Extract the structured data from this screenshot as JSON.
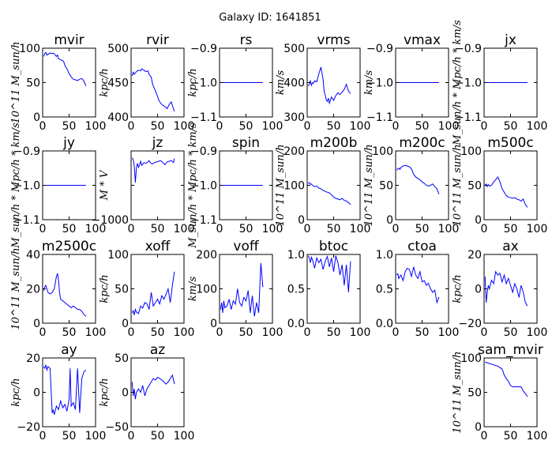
{
  "suptitle": "Galaxy ID: 1641851",
  "colors": {
    "line": "#0000ff",
    "axes": "#000000",
    "background": "#ffffff"
  },
  "chart_data": [
    {
      "type": "line",
      "title": "mvir",
      "ylabel": "10^11 M_sun/h",
      "xlim": [
        0,
        100
      ],
      "ylim": [
        0,
        100
      ],
      "xticks": [
        "0",
        "50",
        "100"
      ],
      "yticks": [
        "0",
        "50",
        "100"
      ],
      "x": [
        2,
        4,
        6,
        8,
        10,
        14,
        18,
        20,
        22,
        26,
        28,
        30,
        34,
        38,
        40,
        42,
        46,
        50,
        52,
        54,
        58,
        62,
        66,
        70,
        74,
        78,
        82
      ],
      "y": [
        88,
        92,
        94,
        90,
        91,
        93,
        92,
        93,
        92,
        88,
        90,
        85,
        83,
        82,
        80,
        75,
        70,
        63,
        61,
        58,
        55,
        54,
        53,
        55,
        56,
        52,
        45
      ]
    },
    {
      "type": "line",
      "title": "rvir",
      "ylabel": "kpc/h",
      "xlim": [
        0,
        100
      ],
      "ylim": [
        400,
        500
      ],
      "xticks": [
        "0",
        "50",
        "100"
      ],
      "yticks": [
        "400",
        "450",
        "500"
      ],
      "x": [
        2,
        4,
        6,
        8,
        10,
        14,
        18,
        20,
        24,
        28,
        32,
        34,
        38,
        40,
        42,
        46,
        50,
        52,
        56,
        60,
        64,
        68,
        72,
        76,
        80,
        82
      ],
      "y": [
        460,
        465,
        462,
        464,
        466,
        468,
        467,
        470,
        468,
        466,
        467,
        462,
        458,
        450,
        445,
        438,
        430,
        425,
        420,
        417,
        415,
        412,
        418,
        422,
        412,
        408
      ]
    },
    {
      "type": "line",
      "title": "rs",
      "ylabel": "kpc/h",
      "xlim": [
        0,
        100
      ],
      "ylim": [
        -1.1,
        -0.9
      ],
      "xticks": [
        "0",
        "50",
        "100"
      ],
      "yticks": [
        "−1.1",
        "−1.0",
        "−0.9"
      ],
      "x": [
        0,
        82
      ],
      "y": [
        -1.0,
        -1.0
      ]
    },
    {
      "type": "line",
      "title": "vrms",
      "ylabel": "km/s",
      "xlim": [
        0,
        100
      ],
      "ylim": [
        300,
        500
      ],
      "xticks": [
        "0",
        "50",
        "100"
      ],
      "yticks": [
        "300",
        "400",
        "500"
      ],
      "x": [
        2,
        4,
        6,
        8,
        10,
        12,
        14,
        18,
        22,
        26,
        30,
        32,
        34,
        36,
        38,
        40,
        42,
        46,
        50,
        54,
        58,
        62,
        66,
        70,
        74,
        78,
        82
      ],
      "y": [
        390,
        395,
        405,
        392,
        400,
        398,
        405,
        402,
        425,
        445,
        410,
        375,
        365,
        350,
        345,
        355,
        340,
        358,
        348,
        362,
        370,
        365,
        372,
        380,
        395,
        375,
        368
      ]
    },
    {
      "type": "line",
      "title": "vmax",
      "ylabel": "km/s",
      "xlim": [
        0,
        100
      ],
      "ylim": [
        -1.1,
        -0.9
      ],
      "xticks": [
        "0",
        "50",
        "100"
      ],
      "yticks": [
        "−1.1",
        "−1.0",
        "−0.9"
      ],
      "x": [
        0,
        82
      ],
      "y": [
        -1.0,
        -1.0
      ]
    },
    {
      "type": "line",
      "title": "jx",
      "ylabel": "M_sun/h * Mpc/h * km/s",
      "xlim": [
        0,
        100
      ],
      "ylim": [
        -1.1,
        -0.9
      ],
      "xticks": [
        "0",
        "50",
        "100"
      ],
      "yticks": [
        "−1.1",
        "−1.0",
        "−0.9"
      ],
      "x": [
        0,
        82
      ],
      "y": [
        -1.0,
        -1.0
      ]
    },
    {
      "type": "line",
      "title": "jy",
      "ylabel": "M_sun/h * Mpc/h * km/s",
      "xlim": [
        0,
        100
      ],
      "ylim": [
        -1.1,
        -0.9
      ],
      "xticks": [
        "0",
        "50",
        "100"
      ],
      "yticks": [
        "−1.1",
        "−1.0",
        "−0.9"
      ],
      "x": [
        0,
        82
      ],
      "y": [
        -1.0,
        -1.0
      ]
    },
    {
      "type": "line",
      "title": "jz",
      "ylabel": "M * V",
      "xlim": [
        0,
        100
      ],
      "ylim": [
        -1000,
        0
      ],
      "xticks": [
        "0",
        "50",
        "100"
      ],
      "yticks": [
        "−1000",
        "",
        ""
      ],
      "x": [
        2,
        4,
        6,
        8,
        10,
        12,
        14,
        16,
        18,
        20,
        24,
        28,
        32,
        34,
        36,
        40,
        44,
        48,
        52,
        56,
        60,
        64,
        68,
        72,
        76,
        80,
        82
      ],
      "y": [
        -100,
        -130,
        -210,
        -460,
        -250,
        -180,
        -240,
        -200,
        -150,
        -210,
        -170,
        -180,
        -160,
        -140,
        -170,
        -190,
        -170,
        -160,
        -150,
        -140,
        -170,
        -200,
        -160,
        -150,
        -140,
        -170,
        -110
      ]
    },
    {
      "type": "line",
      "title": "spin",
      "ylabel": "M_sun/h * Mpc/h * km/s",
      "xlim": [
        0,
        100
      ],
      "ylim": [
        -1.1,
        -0.9
      ],
      "xticks": [
        "0",
        "50",
        "100"
      ],
      "yticks": [
        "−1.1",
        "−1.0",
        "−0.9"
      ],
      "x": [
        0,
        82
      ],
      "y": [
        -1.0,
        -1.0
      ]
    },
    {
      "type": "line",
      "title": "m200b",
      "ylabel": "10^11 M_sun/h",
      "xlim": [
        0,
        100
      ],
      "ylim": [
        0,
        200
      ],
      "xticks": [
        "0",
        "50",
        "100"
      ],
      "yticks": [
        "0",
        "100",
        "200"
      ],
      "x": [
        2,
        4,
        6,
        8,
        10,
        14,
        18,
        22,
        26,
        30,
        34,
        38,
        42,
        46,
        50,
        54,
        58,
        62,
        66,
        70,
        74,
        78,
        82
      ],
      "y": [
        105,
        108,
        103,
        104,
        100,
        96,
        98,
        92,
        90,
        85,
        82,
        80,
        78,
        72,
        66,
        62,
        60,
        58,
        62,
        56,
        54,
        50,
        44
      ]
    },
    {
      "type": "line",
      "title": "m200c",
      "ylabel": "10^11 M_sun/h",
      "xlim": [
        0,
        100
      ],
      "ylim": [
        0,
        100
      ],
      "xticks": [
        "0",
        "50",
        "100"
      ],
      "yticks": [
        "0",
        "50",
        "100"
      ],
      "x": [
        2,
        4,
        6,
        8,
        10,
        14,
        18,
        22,
        26,
        30,
        32,
        34,
        38,
        42,
        46,
        50,
        54,
        58,
        62,
        66,
        70,
        74,
        78,
        82
      ],
      "y": [
        72,
        74,
        75,
        73,
        76,
        78,
        79,
        78,
        77,
        74,
        70,
        66,
        62,
        60,
        58,
        55,
        53,
        50,
        49,
        50,
        52,
        48,
        45,
        37
      ]
    },
    {
      "type": "line",
      "title": "m500c",
      "ylabel": "10^11 M_sun/h",
      "xlim": [
        0,
        100
      ],
      "ylim": [
        0,
        100
      ],
      "xticks": [
        "0",
        "50",
        "100"
      ],
      "yticks": [
        "0",
        "50",
        "100"
      ],
      "x": [
        2,
        4,
        6,
        8,
        10,
        14,
        18,
        22,
        26,
        30,
        34,
        38,
        42,
        46,
        50,
        54,
        58,
        62,
        66,
        70,
        74,
        78,
        82
      ],
      "y": [
        50,
        52,
        48,
        51,
        49,
        50,
        55,
        58,
        62,
        55,
        45,
        40,
        35,
        33,
        32,
        31,
        32,
        30,
        29,
        27,
        30,
        22,
        18
      ]
    },
    {
      "type": "line",
      "title": "m2500c",
      "ylabel": "10^11 M_sun/h",
      "xlim": [
        0,
        100
      ],
      "ylim": [
        0,
        40
      ],
      "xticks": [
        "0",
        "50",
        "100"
      ],
      "yticks": [
        "0",
        "20",
        "40"
      ],
      "x": [
        2,
        4,
        6,
        8,
        10,
        14,
        18,
        22,
        26,
        28,
        30,
        32,
        34,
        38,
        42,
        46,
        50,
        54,
        58,
        62,
        66,
        70,
        74,
        78,
        82
      ],
      "y": [
        19,
        21,
        22,
        20,
        18,
        17,
        18,
        20,
        27,
        29,
        25,
        18,
        14,
        13,
        12,
        11,
        10,
        9,
        10,
        9,
        8,
        8,
        7,
        5,
        4
      ]
    },
    {
      "type": "line",
      "title": "xoff",
      "ylabel": "kpc/h",
      "xlim": [
        0,
        100
      ],
      "ylim": [
        0,
        100
      ],
      "xticks": [
        "0",
        "50",
        "100"
      ],
      "yticks": [
        "0",
        "50",
        "100"
      ],
      "x": [
        2,
        4,
        6,
        8,
        10,
        14,
        18,
        22,
        26,
        30,
        34,
        38,
        42,
        46,
        50,
        54,
        58,
        62,
        66,
        70,
        74,
        78,
        82
      ],
      "y": [
        15,
        18,
        12,
        20,
        16,
        14,
        25,
        22,
        30,
        28,
        20,
        45,
        25,
        30,
        35,
        28,
        40,
        35,
        42,
        50,
        30,
        55,
        75
      ]
    },
    {
      "type": "line",
      "title": "voff",
      "ylabel": "km/s",
      "xlim": [
        0,
        100
      ],
      "ylim": [
        0,
        200
      ],
      "xticks": [
        "0",
        "50",
        "100"
      ],
      "yticks": [
        "0",
        "100",
        "200"
      ],
      "x": [
        2,
        4,
        6,
        8,
        10,
        14,
        18,
        22,
        26,
        30,
        34,
        38,
        42,
        46,
        50,
        54,
        58,
        62,
        66,
        70,
        74,
        78,
        82
      ],
      "y": [
        40,
        60,
        30,
        65,
        45,
        50,
        70,
        40,
        65,
        55,
        100,
        60,
        50,
        75,
        65,
        95,
        30,
        80,
        20,
        60,
        30,
        175,
        105
      ]
    },
    {
      "type": "line",
      "title": "btoc",
      "ylabel": "",
      "xlim": [
        0,
        100
      ],
      "ylim": [
        0,
        1
      ],
      "xticks": [
        "0",
        "50",
        "100"
      ],
      "yticks": [
        "0.0",
        "0.5",
        "1.0"
      ],
      "x": [
        2,
        4,
        6,
        8,
        10,
        14,
        18,
        22,
        26,
        30,
        34,
        38,
        42,
        46,
        50,
        54,
        58,
        62,
        66,
        70,
        74,
        78,
        82
      ],
      "y": [
        0.98,
        0.95,
        0.88,
        0.96,
        0.92,
        0.8,
        0.95,
        0.88,
        0.93,
        0.78,
        0.9,
        0.97,
        0.82,
        0.95,
        0.75,
        0.98,
        0.88,
        0.7,
        0.85,
        0.55,
        0.85,
        0.45,
        0.9
      ]
    },
    {
      "type": "line",
      "title": "ctoa",
      "ylabel": "",
      "xlim": [
        0,
        100
      ],
      "ylim": [
        0,
        1
      ],
      "xticks": [
        "0",
        "50",
        "100"
      ],
      "yticks": [
        "0.0",
        "0.5",
        "1.0"
      ],
      "x": [
        2,
        4,
        6,
        8,
        10,
        14,
        18,
        22,
        26,
        30,
        34,
        38,
        42,
        46,
        50,
        54,
        58,
        62,
        66,
        70,
        74,
        78,
        82
      ],
      "y": [
        0.7,
        0.72,
        0.65,
        0.68,
        0.7,
        0.62,
        0.75,
        0.8,
        0.78,
        0.68,
        0.82,
        0.7,
        0.65,
        0.75,
        0.6,
        0.62,
        0.55,
        0.58,
        0.5,
        0.45,
        0.48,
        0.3,
        0.38
      ]
    },
    {
      "type": "line",
      "title": "ax",
      "ylabel": "kpc/h",
      "xlim": [
        0,
        100
      ],
      "ylim": [
        -20,
        20
      ],
      "xticks": [
        "0",
        "50",
        "100"
      ],
      "yticks": [
        "−20",
        "0",
        "20"
      ],
      "x": [
        2,
        4,
        6,
        8,
        10,
        14,
        18,
        22,
        26,
        30,
        34,
        38,
        42,
        46,
        50,
        54,
        58,
        62,
        66,
        70,
        74,
        78,
        82
      ],
      "y": [
        7,
        -8,
        -2,
        2,
        0,
        5,
        3,
        10,
        8,
        9,
        4,
        8,
        3,
        6,
        2,
        -2,
        3,
        0,
        -5,
        2,
        -2,
        -8,
        -10
      ]
    },
    {
      "type": "line",
      "title": "ay",
      "ylabel": "kpc/h",
      "xlim": [
        0,
        100
      ],
      "ylim": [
        -20,
        20
      ],
      "xticks": [
        "0",
        "50",
        "100"
      ],
      "yticks": [
        "−20",
        "0",
        "20"
      ],
      "x": [
        2,
        4,
        6,
        8,
        10,
        14,
        18,
        20,
        22,
        26,
        30,
        34,
        38,
        42,
        46,
        50,
        52,
        54,
        58,
        62,
        66,
        70,
        74,
        78,
        82
      ],
      "y": [
        15,
        14,
        16,
        13,
        15,
        14,
        -12,
        -10,
        -13,
        -8,
        -10,
        -5,
        -9,
        -7,
        -11,
        -4,
        14,
        -8,
        -6,
        -10,
        14,
        -12,
        8,
        12,
        13
      ]
    },
    {
      "type": "line",
      "title": "az",
      "ylabel": "kpc/h",
      "xlim": [
        0,
        100
      ],
      "ylim": [
        -50,
        50
      ],
      "xticks": [
        "0",
        "50",
        "100"
      ],
      "yticks": [
        "−50",
        "0",
        "50"
      ],
      "x": [
        2,
        4,
        6,
        8,
        10,
        14,
        18,
        22,
        26,
        30,
        34,
        38,
        42,
        46,
        50,
        54,
        58,
        62,
        66,
        70,
        74,
        78,
        82
      ],
      "y": [
        15,
        -5,
        5,
        -10,
        0,
        5,
        0,
        10,
        -5,
        5,
        10,
        15,
        20,
        18,
        22,
        20,
        18,
        15,
        12,
        15,
        20,
        25,
        12
      ]
    },
    {
      "type": "line",
      "title": "sam_mvir",
      "ylabel": "10^11 M_sun/h",
      "xlim": [
        0,
        100
      ],
      "ylim": [
        0,
        100
      ],
      "xticks": [
        "0",
        "50",
        "100"
      ],
      "yticks": [
        "0",
        "50",
        "100"
      ],
      "x": [
        2,
        6,
        10,
        14,
        18,
        22,
        26,
        30,
        34,
        36,
        38,
        42,
        46,
        50,
        54,
        58,
        62,
        66,
        70,
        74,
        78,
        82
      ],
      "y": [
        94,
        93,
        92,
        91,
        90,
        89,
        88,
        86,
        84,
        80,
        75,
        70,
        66,
        60,
        58,
        58,
        58,
        58,
        58,
        52,
        48,
        44
      ]
    }
  ]
}
